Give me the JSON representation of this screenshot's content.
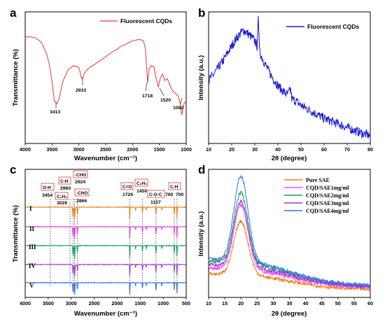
{
  "panels": [
    {
      "letter": "a",
      "xlabel": "Wavenumber (cm⁻¹)",
      "ylabel": "Transmittance (%)",
      "legend": [
        "Fluorescent CQDs"
      ],
      "annotations": [
        "3413",
        "2933",
        "1718",
        "1520",
        "1082"
      ]
    },
    {
      "letter": "b",
      "xlabel": "2θ (degree)",
      "ylabel": "Intensity (a.u.)",
      "legend": [
        "Fluorescent CQDs"
      ]
    },
    {
      "letter": "c",
      "xlabel": "Wavenumber (cm⁻¹)",
      "ylabel": "Transmittance (%)",
      "series_labels": [
        "I",
        "II",
        "III",
        "IV",
        "V"
      ],
      "box_labels": [
        "O-H",
        "C₂H₅",
        "C-H",
        "-CHO",
        "-CHO",
        "C=O",
        "C₂H₅",
        "C-O-C",
        "C-H"
      ],
      "annotations": [
        "3454",
        "3026",
        "2960",
        "2924",
        "2866",
        "1726",
        "1450",
        "1157",
        "760",
        "700"
      ]
    },
    {
      "letter": "d",
      "xlabel": "2θ (degree)",
      "ylabel": "Intensity (a.u.)",
      "legend": [
        "Pure SAE",
        "CQD/SAE1mg/ml",
        "CQD/SAE2mg/ml",
        "CQD/SAE3mg/ml",
        "CQD/SAE4mg/ml"
      ]
    }
  ],
  "chart_data": [
    {
      "type": "line",
      "title": "",
      "xlabel": "Wavenumber (cm⁻¹)",
      "ylabel": "Transmittance (%)",
      "xlim": [
        4000,
        1000
      ],
      "x_ticks": [
        4000,
        3500,
        3000,
        2500,
        2000,
        1500,
        1000
      ],
      "y_ticks": [],
      "color": "#e53935",
      "series": [
        {
          "name": "Fluorescent CQDs",
          "x": [
            4000,
            3900,
            3800,
            3700,
            3600,
            3550,
            3500,
            3460,
            3413,
            3370,
            3300,
            3200,
            3100,
            3000,
            2960,
            2933,
            2900,
            2800,
            2600,
            2400,
            2200,
            2000,
            1900,
            1800,
            1760,
            1718,
            1690,
            1650,
            1600,
            1560,
            1520,
            1480,
            1440,
            1400,
            1350,
            1300,
            1250,
            1200,
            1150,
            1120,
            1082,
            1040,
            1000
          ],
          "y": [
            0.81,
            0.81,
            0.8,
            0.77,
            0.68,
            0.6,
            0.47,
            0.33,
            0.3,
            0.34,
            0.47,
            0.56,
            0.59,
            0.58,
            0.51,
            0.49,
            0.53,
            0.58,
            0.63,
            0.69,
            0.74,
            0.78,
            0.79,
            0.785,
            0.72,
            0.46,
            0.57,
            0.59,
            0.58,
            0.49,
            0.43,
            0.5,
            0.53,
            0.48,
            0.49,
            0.44,
            0.4,
            0.38,
            0.36,
            0.32,
            0.22,
            0.3,
            0.33
          ]
        }
      ],
      "legend_position": "top-right"
    },
    {
      "type": "line",
      "title": "",
      "xlabel": "2θ (degree)",
      "ylabel": "Intensity (a.u.)",
      "xlim": [
        10,
        80
      ],
      "x_ticks": [
        10,
        20,
        30,
        40,
        50,
        60,
        70,
        80
      ],
      "y_ticks": [],
      "color": "#1a1ad6",
      "series": [
        {
          "name": "Fluorescent CQDs",
          "x": [
            10,
            12,
            14,
            16,
            18,
            20,
            22,
            24,
            25,
            26,
            28,
            30,
            31,
            31.5,
            32,
            34,
            36,
            38,
            40,
            42,
            44,
            45.5,
            46,
            48,
            50,
            52,
            55,
            58,
            60,
            63,
            66,
            70,
            73,
            76,
            80
          ],
          "y": [
            0.48,
            0.52,
            0.57,
            0.62,
            0.68,
            0.74,
            0.8,
            0.84,
            0.86,
            0.85,
            0.82,
            0.78,
            0.74,
            0.97,
            0.7,
            0.62,
            0.55,
            0.49,
            0.44,
            0.4,
            0.37,
            0.41,
            0.34,
            0.32,
            0.29,
            0.27,
            0.24,
            0.21,
            0.19,
            0.17,
            0.15,
            0.12,
            0.1,
            0.08,
            0.06
          ]
        }
      ],
      "legend_position": "top-right"
    },
    {
      "type": "line",
      "title": "",
      "xlabel": "Wavenumber (cm⁻¹)",
      "ylabel": "Transmittance (%)",
      "xlim": [
        4000,
        500
      ],
      "x_ticks": [
        4000,
        3500,
        3000,
        2500,
        2000,
        1500,
        1000,
        500
      ],
      "y_ticks": [],
      "marked_wavenumbers": [
        3454,
        3026,
        2960,
        2924,
        2866,
        1726,
        1450,
        1157,
        760,
        700
      ],
      "series": [
        {
          "name": "I",
          "color": "#ef7d16"
        },
        {
          "name": "II",
          "color": "#e040e0"
        },
        {
          "name": "III",
          "color": "#0f9a58"
        },
        {
          "name": "IV",
          "color": "#9a36d8"
        },
        {
          "name": "V",
          "color": "#2f6fe0"
        }
      ]
    },
    {
      "type": "line",
      "title": "",
      "xlabel": "2θ (degree)",
      "ylabel": "Intensity (a.u.)",
      "xlim": [
        10,
        60
      ],
      "x_ticks": [
        10,
        15,
        20,
        25,
        30,
        35,
        40,
        45,
        50,
        55,
        60
      ],
      "y_ticks": [],
      "peak_2theta": 20,
      "series": [
        {
          "name": "Pure SAE",
          "color": "#ef7d16",
          "peak": 0.6,
          "base": 0.2,
          "tail": 0.06
        },
        {
          "name": "CQD/SAE1mg/ml",
          "color": "#ff4cff",
          "peak": 0.73,
          "base": 0.25,
          "tail": 0.075
        },
        {
          "name": "CQD/SAE2mg/ml",
          "color": "#0f9a58",
          "peak": 0.83,
          "base": 0.31,
          "tail": 0.085
        },
        {
          "name": "CQD/SAE3mg/ml",
          "color": "#9a36d8",
          "peak": 0.76,
          "base": 0.28,
          "tail": 0.08
        },
        {
          "name": "CQD/SAE4mg/ml",
          "color": "#3b6fe8",
          "peak": 0.96,
          "base": 0.33,
          "tail": 0.09
        }
      ],
      "legend_position": "top-right"
    }
  ]
}
